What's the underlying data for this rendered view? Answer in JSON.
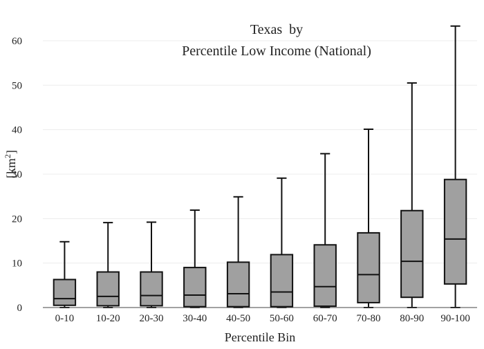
{
  "chart_data": {
    "type": "box",
    "title": [
      "Texas  by",
      "Percentile Low Income (National)"
    ],
    "xlabel": "Percentile Bin",
    "ylabel": "[km",
    "ylabel_superscript": "2",
    "ylabel_suffix": "]",
    "ylim": [
      0,
      64.5
    ],
    "yticks": [
      0,
      10,
      20,
      30,
      40,
      50,
      60
    ],
    "grid": true,
    "box_color": "#a0a0a0",
    "line_color": "#111111",
    "categories": [
      "0-10",
      "10-20",
      "20-30",
      "30-40",
      "40-50",
      "50-60",
      "60-70",
      "70-80",
      "80-90",
      "90-100"
    ],
    "boxes": [
      {
        "min": 0,
        "q1": 0.5,
        "median": 2.0,
        "q3": 6.3,
        "max": 14.8
      },
      {
        "min": 0,
        "q1": 0.4,
        "median": 2.5,
        "q3": 8.0,
        "max": 19.1
      },
      {
        "min": 0,
        "q1": 0.4,
        "median": 2.7,
        "q3": 8.0,
        "max": 19.2
      },
      {
        "min": 0,
        "q1": 0.2,
        "median": 2.8,
        "q3": 9.0,
        "max": 21.9
      },
      {
        "min": 0,
        "q1": 0.2,
        "median": 3.1,
        "q3": 10.2,
        "max": 24.9
      },
      {
        "min": 0,
        "q1": 0.2,
        "median": 3.5,
        "q3": 11.9,
        "max": 29.1
      },
      {
        "min": 0,
        "q1": 0.3,
        "median": 4.7,
        "q3": 14.1,
        "max": 34.6
      },
      {
        "min": 0,
        "q1": 1.1,
        "median": 7.4,
        "q3": 16.8,
        "max": 40.1
      },
      {
        "min": 0,
        "q1": 2.3,
        "median": 10.4,
        "q3": 21.8,
        "max": 50.5
      },
      {
        "min": 0,
        "q1": 5.3,
        "median": 15.4,
        "q3": 28.8,
        "max": 63.3
      }
    ]
  }
}
